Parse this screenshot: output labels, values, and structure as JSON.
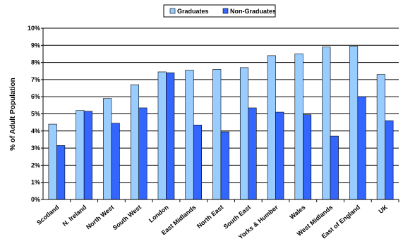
{
  "chart_data": {
    "type": "bar",
    "ylabel": "% of Adult Population",
    "xlabel": "",
    "ylim": [
      0,
      10
    ],
    "yticks": [
      "0%",
      "1%",
      "2%",
      "3%",
      "4%",
      "5%",
      "6%",
      "7%",
      "8%",
      "9%",
      "10%"
    ],
    "grid": true,
    "legend_position": "top-center",
    "categories": [
      "Scotland",
      "N. Ireland",
      "North West",
      "South West",
      "London",
      "East Midlands",
      "North East",
      "South East",
      "Yorks & Humber",
      "Wales",
      "West Midlands",
      "East of England",
      "UK"
    ],
    "series": [
      {
        "name": "Graduates",
        "color": "#99ccff",
        "values": [
          4.4,
          5.2,
          5.9,
          6.7,
          7.45,
          7.55,
          7.6,
          7.7,
          8.4,
          8.5,
          8.9,
          8.95,
          7.3
        ]
      },
      {
        "name": "Non-Graduates",
        "color": "#3366ff",
        "values": [
          3.15,
          5.15,
          4.45,
          5.35,
          7.4,
          4.35,
          3.95,
          5.35,
          5.1,
          4.95,
          3.7,
          6.0,
          4.6
        ]
      }
    ]
  }
}
